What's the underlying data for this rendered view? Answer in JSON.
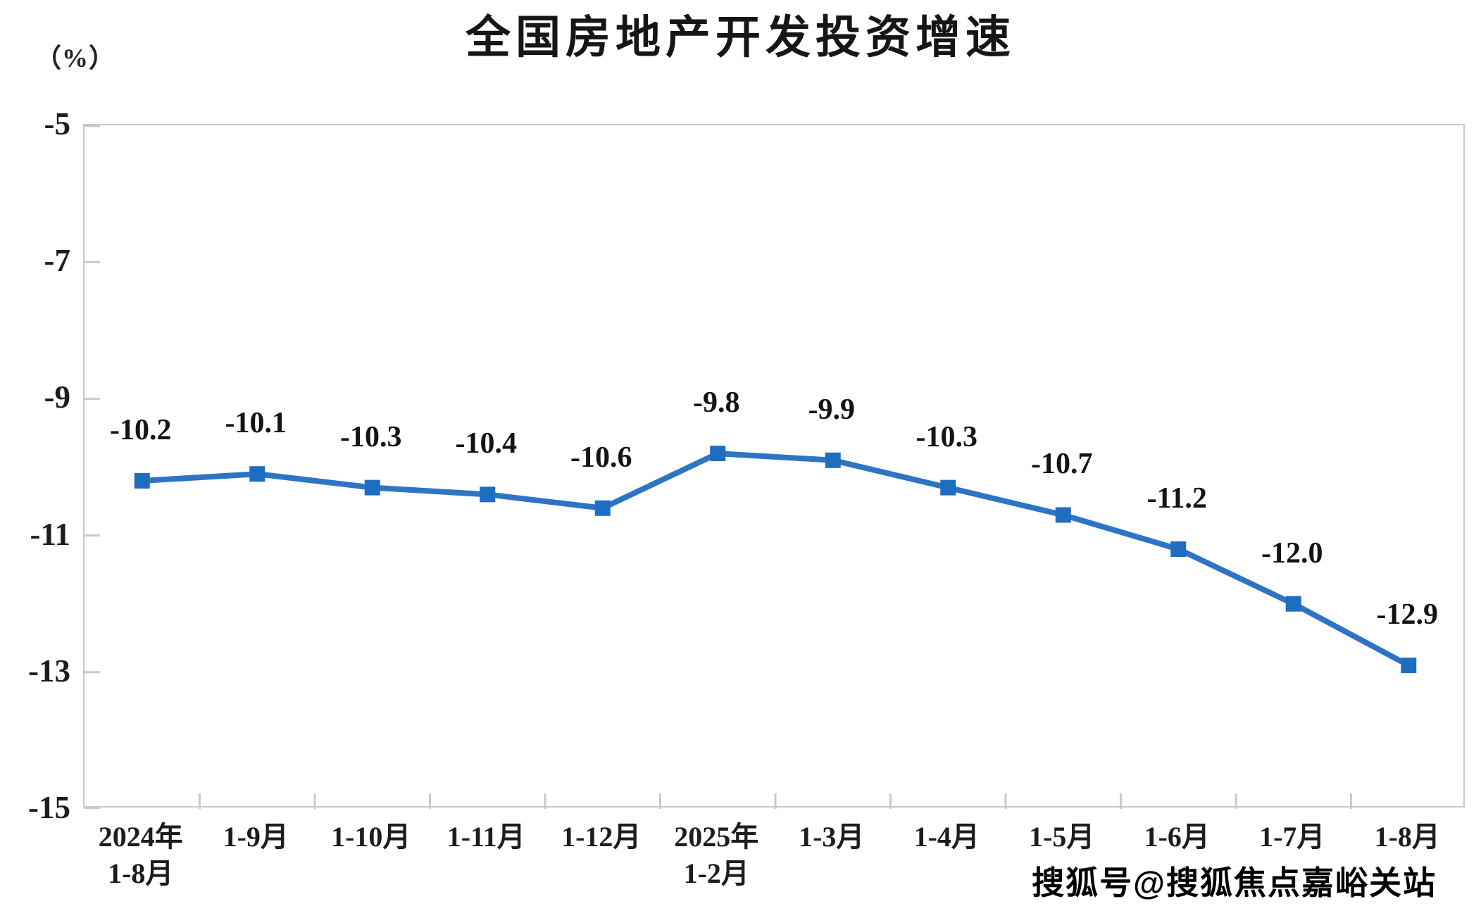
{
  "header": {
    "title": "全国房地产开发投资增速",
    "unit_label": "（%）"
  },
  "watermark": {
    "text": "搜狐号@搜狐焦点嘉峪关站"
  },
  "chart_data": {
    "type": "line",
    "title": "全国房地产开发投资增速",
    "ylabel": "（%）",
    "categories": [
      [
        "2024年",
        "1-8月"
      ],
      [
        "1-9月"
      ],
      [
        "1-10月"
      ],
      [
        "1-11月"
      ],
      [
        "1-12月"
      ],
      [
        "2025年",
        "1-2月"
      ],
      [
        "1-3月"
      ],
      [
        "1-4月"
      ],
      [
        "1-5月"
      ],
      [
        "1-6月"
      ],
      [
        "1-7月"
      ],
      [
        "1-8月"
      ]
    ],
    "values": [
      -10.2,
      -10.1,
      -10.3,
      -10.4,
      -10.6,
      -9.8,
      -9.9,
      -10.3,
      -10.7,
      -11.2,
      -12.0,
      -12.9
    ],
    "point_labels": [
      "-10.2",
      "-10.1",
      "-10.3",
      "-10.4",
      "-10.6",
      "-9.8",
      "-9.9",
      "-10.3",
      "-10.7",
      "-11.2",
      "-12.0",
      "-12.9"
    ],
    "yticks": [
      -5,
      -7,
      -9,
      -11,
      -13,
      -15
    ],
    "ylim": [
      -15,
      -5
    ],
    "grid": false,
    "legend_position": "none",
    "marker_shape": "square",
    "line_color": "#2e74c4",
    "marker_color": "#1e6dc0",
    "axis_color": "#c9c9c9",
    "text_color": "#1a1a1a"
  }
}
